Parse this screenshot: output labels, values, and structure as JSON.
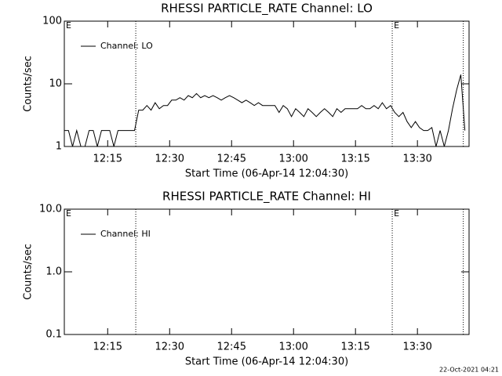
{
  "chart_data": [
    {
      "type": "line",
      "title": "RHESSI PARTICLE_RATE Channel: LO",
      "xlabel": "Start Time (06-Apr-14 12:04:30)",
      "ylabel": "Counts/sec",
      "log_y": true,
      "legend": "upper left",
      "xlim": [
        0,
        98
      ],
      "xticks": [
        {
          "value": 10.5,
          "label": "12:15"
        },
        {
          "value": 25.5,
          "label": "12:30"
        },
        {
          "value": 40.5,
          "label": "12:45"
        },
        {
          "value": 55.5,
          "label": "13:00"
        },
        {
          "value": 70.5,
          "label": "13:15"
        },
        {
          "value": 85.5,
          "label": "13:30"
        }
      ],
      "ylim": [
        1,
        100
      ],
      "yticks": [
        1,
        10,
        100
      ],
      "vlines": [
        17.3,
        79.4,
        96.6
      ],
      "annotations": [
        {
          "text": "E",
          "x": 0
        },
        {
          "text": "E",
          "x": 79.4
        }
      ],
      "x": [
        0,
        1,
        2,
        3,
        4,
        5,
        6,
        7,
        8,
        9,
        10,
        11,
        12,
        13,
        14,
        15,
        16,
        17,
        18,
        19,
        20,
        21,
        22,
        23,
        24,
        25,
        26,
        27,
        28,
        29,
        30,
        31,
        32,
        33,
        34,
        35,
        36,
        37,
        38,
        39,
        40,
        41,
        42,
        43,
        44,
        45,
        46,
        47,
        48,
        49,
        50,
        51,
        52,
        53,
        54,
        55,
        56,
        57,
        58,
        59,
        60,
        61,
        62,
        63,
        64,
        65,
        66,
        67,
        68,
        69,
        70,
        71,
        72,
        73,
        74,
        75,
        76,
        77,
        78,
        79,
        80,
        81,
        82,
        83,
        84,
        85,
        86,
        87,
        88,
        89,
        90,
        91,
        92,
        93,
        94,
        95,
        96,
        97
      ],
      "series": [
        {
          "name": "Channel: LO",
          "color": "#000000",
          "values": [
            1.8,
            1.8,
            1,
            1.8,
            1,
            1,
            1.8,
            1.8,
            1,
            1.8,
            1.8,
            1.8,
            1,
            1.8,
            1.8,
            1.8,
            1.8,
            1.8,
            3.8,
            3.8,
            4.5,
            3.8,
            5,
            4,
            4.5,
            4.5,
            5.5,
            5.5,
            6,
            5.5,
            6.5,
            6,
            7,
            6,
            6.5,
            6,
            6.5,
            6,
            5.5,
            6,
            6.5,
            6,
            5.5,
            5,
            5.5,
            5,
            4.5,
            5,
            4.5,
            4.5,
            4.5,
            4.5,
            3.5,
            4.5,
            4,
            3,
            4,
            3.5,
            3,
            4,
            3.5,
            3,
            3.5,
            4,
            3.5,
            3,
            4,
            3.5,
            4,
            4,
            4,
            4,
            4.5,
            4,
            4,
            4.5,
            4,
            5,
            4,
            4.5,
            3.5,
            3,
            3.5,
            2.5,
            2,
            2.5,
            2,
            1.8,
            1.8,
            2,
            1,
            1.8,
            1,
            1.8,
            4,
            8,
            14,
            1.8
          ]
        }
      ]
    },
    {
      "type": "line",
      "title": "RHESSI PARTICLE_RATE Channel: HI",
      "xlabel": "Start Time (06-Apr-14 12:04:30)",
      "ylabel": "Counts/sec",
      "log_y": true,
      "legend": "upper left",
      "xlim": [
        0,
        98
      ],
      "xticks": [
        {
          "value": 10.5,
          "label": "12:15"
        },
        {
          "value": 25.5,
          "label": "12:30"
        },
        {
          "value": 40.5,
          "label": "12:45"
        },
        {
          "value": 55.5,
          "label": "13:00"
        },
        {
          "value": 70.5,
          "label": "13:15"
        },
        {
          "value": 85.5,
          "label": "13:30"
        }
      ],
      "ylim": [
        0.1,
        10
      ],
      "yticks": [
        {
          "value": 0.1,
          "label": "0.1"
        },
        {
          "value": 1,
          "label": "1.0"
        },
        {
          "value": 10,
          "label": "10.0"
        }
      ],
      "vlines": [
        17.3,
        79.4,
        96.6
      ],
      "annotations": [
        {
          "text": "E",
          "x": 0
        },
        {
          "text": "E",
          "x": 79.4
        }
      ],
      "series": [
        {
          "name": "Channel: HI",
          "color": "#000000"
        }
      ]
    }
  ],
  "footer": "22-Oct-2021 04:21"
}
